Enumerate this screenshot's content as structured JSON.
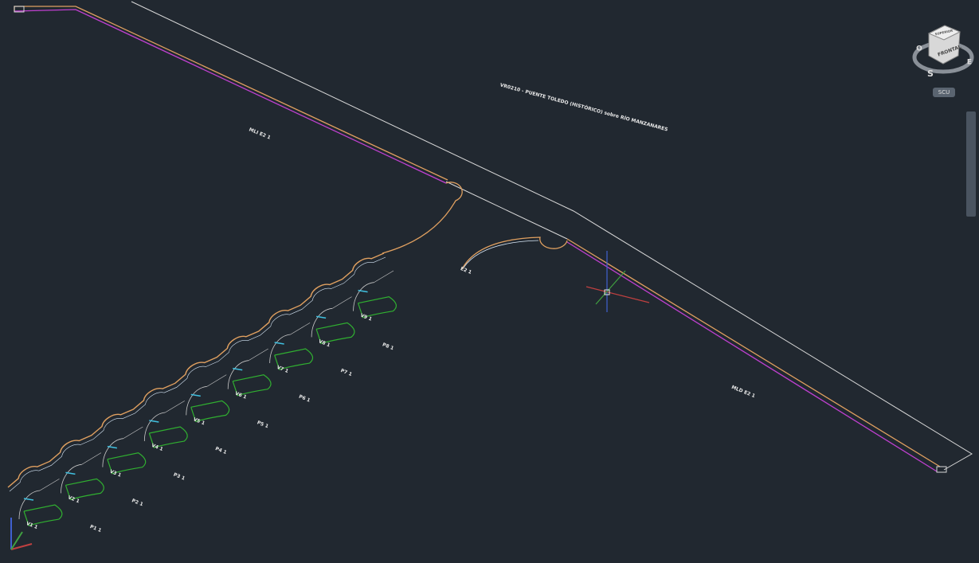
{
  "drawing": {
    "title": "VR0210 - PUENTE TOLEDO (HISTÓRICO) sobre RÍO MANZANARES",
    "left_label": "MLI E2 1",
    "right_label": "MLD E2 1",
    "end_label": "E2 1",
    "vano_labels": [
      "V1 1",
      "V2 1",
      "V3 1",
      "V4 1",
      "V5 1",
      "V6 1",
      "V7 1",
      "V8 1",
      "V9 1"
    ],
    "pila_labels": [
      "P1 1",
      "P2 1",
      "P3 1",
      "P4 1",
      "P5 1",
      "P6 1",
      "P7 1",
      "P8 1"
    ]
  },
  "viewcube": {
    "top": "SUPERIOR",
    "face": "FRONTAL",
    "west": "O",
    "south": "S",
    "east": "E"
  },
  "ucs_menu": "SCU"
}
